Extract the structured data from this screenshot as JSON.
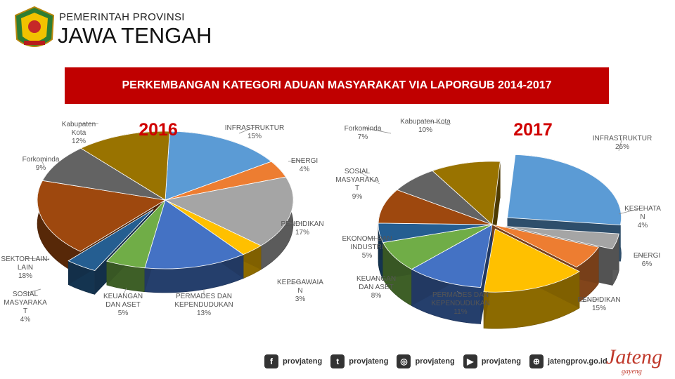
{
  "header": {
    "subtitle": "PEMERINTAH PROVINSI",
    "title": "JAWA TENGAH"
  },
  "banner": {
    "title": "PERKEMBANGAN KATEGORI ADUAN MASYARAKAT VIA LAPORGUB 2014-2017"
  },
  "chart_data": [
    {
      "type": "pie",
      "title": "2016",
      "slices": [
        {
          "label": "INFRASTRUKTUR",
          "value": 15,
          "color": "#5b9bd5"
        },
        {
          "label": "ENERGI",
          "value": 4,
          "color": "#ed7d31"
        },
        {
          "label": "PENDIDIKAN",
          "value": 17,
          "color": "#a5a5a5"
        },
        {
          "label": "KEPEGAWAIAN",
          "value": 3,
          "color": "#ffc000"
        },
        {
          "label": "PERMADES DAN KEPENDUDUKAN",
          "value": 13,
          "color": "#4472c4"
        },
        {
          "label": "KEUANGAN DAN ASET",
          "value": 5,
          "color": "#70ad47"
        },
        {
          "label": "SOSIAL MASYARAKAT",
          "value": 4,
          "color": "#255e91"
        },
        {
          "label": "SEKTOR LAIN-LAIN",
          "value": 18,
          "color": "#9e480e"
        },
        {
          "label": "Forkominda",
          "value": 9,
          "color": "#636363"
        },
        {
          "label": "Kabupaten Kota",
          "value": 12,
          "color": "#997300"
        }
      ],
      "label_texts": [
        "INFRASTRUKTUR\n15%",
        "ENERGI\n4%",
        "PENDIDIKAN\n17%",
        "KEPEGAWAIA\nN\n3%",
        "PERMADES DAN\nKEPENDUDUKAN\n13%",
        "KEUANGAN\nDAN ASET\n5%",
        "SOSIAL\nMASYARAKA\nT\n4%",
        "SEKTOR LAIN-\nLAIN\n18%",
        "Forkominda\n9%",
        "Kabupaten\nKota\n12%"
      ]
    },
    {
      "type": "pie",
      "title": "2017",
      "slices": [
        {
          "label": "INFRASTRUKTUR",
          "value": 26,
          "color": "#5b9bd5"
        },
        {
          "label": "KESEHATAN",
          "value": 4,
          "color": "#a5a5a5"
        },
        {
          "label": "ENERGI",
          "value": 6,
          "color": "#ed7d31"
        },
        {
          "label": "PENDIDIKAN",
          "value": 15,
          "color": "#ffc000"
        },
        {
          "label": "PERMADES DAN KEPENDUDUKAN",
          "value": 11,
          "color": "#4472c4"
        },
        {
          "label": "KEUANGAN DAN ASET",
          "value": 8,
          "color": "#70ad47"
        },
        {
          "label": "EKONOMI DAN INDUSTRI",
          "value": 5,
          "color": "#255e91"
        },
        {
          "label": "SOSIAL MASYARAKAT",
          "value": 9,
          "color": "#9e480e"
        },
        {
          "label": "Forkominda",
          "value": 7,
          "color": "#636363"
        },
        {
          "label": "Kabupaten Kota",
          "value": 10,
          "color": "#997300"
        }
      ],
      "label_texts": [
        "INFRASTRUKTUR\n26%",
        "KESEHATA\nN\n4%",
        "ENERGI\n6%",
        "PENDIDIKAN\n15%",
        "PERMADES DAN\nKEPENDUDUKAN\n11%",
        "KEUANGAN\nDAN ASET\n8%",
        "EKONOMI DAN\nINDUSTRI\n5%",
        "SOSIAL\nMASYARAKA\nT\n9%",
        "Forkominda\n7%",
        "Kabupaten Kota\n10%"
      ]
    }
  ],
  "footer": {
    "items": [
      {
        "icon": "facebook-icon",
        "glyph": "f",
        "text": "provjateng"
      },
      {
        "icon": "twitter-icon",
        "glyph": "t",
        "text": "provjateng"
      },
      {
        "icon": "instagram-icon",
        "glyph": "◎",
        "text": "provjateng"
      },
      {
        "icon": "youtube-icon",
        "glyph": "▶",
        "text": "provjateng"
      },
      {
        "icon": "web-icon",
        "glyph": "⊕",
        "text": "jatengprov.go.id"
      }
    ],
    "brand": "Jateng",
    "brand_sub": "gayeng"
  }
}
